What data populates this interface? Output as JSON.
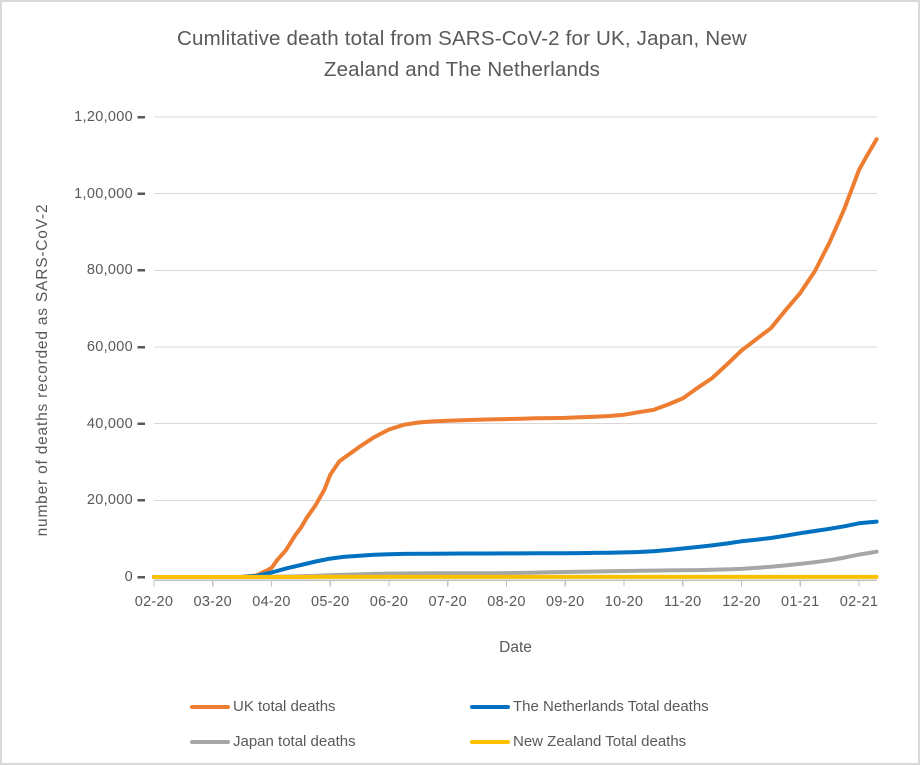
{
  "window": {
    "background": "#ffffff",
    "border_color": "#D9D9D9"
  },
  "colors": {
    "title_text": "#595959",
    "axis_text": "#595959",
    "gridline": "#D9D9D9",
    "axis_line": "#C0C0C0",
    "y_tick_mark": "#595959"
  },
  "chart_data": {
    "type": "line",
    "title": "Cumlitative death total from SARS-CoV-2 for UK, Japan, New Zealand and The Netherlands",
    "title_lines": [
      "Cumlitative death total from SARS-CoV-2 for UK, Japan, New",
      "Zealand and The Netherlands"
    ],
    "xlabel": "Date",
    "ylabel": "number of deaths recorded as SARS-CoV-2",
    "x_tick_labels": [
      "02-20",
      "03-20",
      "04-20",
      "05-20",
      "06-20",
      "07-20",
      "08-20",
      "09-20",
      "10-20",
      "11-20",
      "12-20",
      "01-21",
      "02-21"
    ],
    "x_unit": "months after 02-20 (fractional = within month)",
    "y_ticks": [
      {
        "label": "0",
        "value": 0
      },
      {
        "label": "20,000",
        "value": 20000
      },
      {
        "label": "40,000",
        "value": 40000
      },
      {
        "label": "60,000",
        "value": 60000
      },
      {
        "label": "80,000",
        "value": 80000
      },
      {
        "label": "1,00,000",
        "value": 100000
      },
      {
        "label": "1,20,000",
        "value": 120000
      }
    ],
    "ylim": [
      0,
      120000
    ],
    "grid": "horizontal",
    "legend_position": "bottom two-column",
    "series": [
      {
        "name": "UK total deaths",
        "color": "#ED7D31",
        "points": [
          [
            0,
            0
          ],
          [
            0.5,
            0
          ],
          [
            1,
            0
          ],
          [
            1.25,
            5
          ],
          [
            1.5,
            35
          ],
          [
            1.75,
            422
          ],
          [
            2,
            2352
          ],
          [
            2.1,
            4500
          ],
          [
            2.25,
            7097
          ],
          [
            2.4,
            10800
          ],
          [
            2.5,
            12868
          ],
          [
            2.6,
            15464
          ],
          [
            2.75,
            18738
          ],
          [
            2.9,
            22800
          ],
          [
            3,
            26711
          ],
          [
            3.15,
            30100
          ],
          [
            3.25,
            31241
          ],
          [
            3.5,
            33998
          ],
          [
            3.75,
            36500
          ],
          [
            4,
            38489
          ],
          [
            4.25,
            39700
          ],
          [
            4.5,
            40300
          ],
          [
            4.75,
            40600
          ],
          [
            5,
            40750
          ],
          [
            5.25,
            40900
          ],
          [
            5.5,
            41000
          ],
          [
            5.75,
            41100
          ],
          [
            6,
            41200
          ],
          [
            6.25,
            41300
          ],
          [
            6.5,
            41400
          ],
          [
            6.75,
            41450
          ],
          [
            7,
            41500
          ],
          [
            7.25,
            41650
          ],
          [
            7.5,
            41800
          ],
          [
            7.75,
            42000
          ],
          [
            8,
            42350
          ],
          [
            8.25,
            43000
          ],
          [
            8.5,
            43600
          ],
          [
            8.75,
            45000
          ],
          [
            9,
            46600
          ],
          [
            9.25,
            49300
          ],
          [
            9.5,
            51900
          ],
          [
            9.75,
            55400
          ],
          [
            10,
            59100
          ],
          [
            10.25,
            62000
          ],
          [
            10.5,
            64900
          ],
          [
            10.75,
            69600
          ],
          [
            11,
            74100
          ],
          [
            11.25,
            79800
          ],
          [
            11.5,
            87300
          ],
          [
            11.75,
            96000
          ],
          [
            12,
            106200
          ],
          [
            12.15,
            110300
          ],
          [
            12.3,
            114200
          ]
        ]
      },
      {
        "name": "The Netherlands Total deaths",
        "color": "#0070C0",
        "points": [
          [
            0,
            0
          ],
          [
            1,
            0
          ],
          [
            1.25,
            1
          ],
          [
            1.5,
            20
          ],
          [
            1.75,
            277
          ],
          [
            2,
            1173
          ],
          [
            2.25,
            2255
          ],
          [
            2.5,
            3134
          ],
          [
            2.75,
            4054
          ],
          [
            3,
            4795
          ],
          [
            3.25,
            5288
          ],
          [
            3.5,
            5562
          ],
          [
            3.75,
            5788
          ],
          [
            4,
            5956
          ],
          [
            4.25,
            6031
          ],
          [
            4.5,
            6059
          ],
          [
            4.75,
            6090
          ],
          [
            5,
            6113
          ],
          [
            5.25,
            6127
          ],
          [
            5.5,
            6136
          ],
          [
            5.75,
            6141
          ],
          [
            6,
            6147
          ],
          [
            6.25,
            6159
          ],
          [
            6.5,
            6178
          ],
          [
            6.75,
            6195
          ],
          [
            7,
            6215
          ],
          [
            7.25,
            6245
          ],
          [
            7.5,
            6296
          ],
          [
            7.75,
            6340
          ],
          [
            8,
            6406
          ],
          [
            8.25,
            6531
          ],
          [
            8.5,
            6692
          ],
          [
            8.75,
            7046
          ],
          [
            9,
            7434
          ],
          [
            9.25,
            7833
          ],
          [
            9.5,
            8236
          ],
          [
            9.75,
            8749
          ],
          [
            10,
            9326
          ],
          [
            10.25,
            9743
          ],
          [
            10.5,
            10168
          ],
          [
            10.75,
            10785
          ],
          [
            11,
            11432
          ],
          [
            11.25,
            11999
          ],
          [
            11.5,
            12563
          ],
          [
            11.75,
            13231
          ],
          [
            12,
            13998
          ],
          [
            12.3,
            14450
          ]
        ]
      },
      {
        "name": "Japan total deaths",
        "color": "#A6A6A6",
        "points": [
          [
            0,
            1
          ],
          [
            1,
            5
          ],
          [
            1.5,
            22
          ],
          [
            2,
            57
          ],
          [
            2.25,
            109
          ],
          [
            2.5,
            178
          ],
          [
            2.75,
            299
          ],
          [
            3,
            432
          ],
          [
            3.25,
            567
          ],
          [
            3.5,
            687
          ],
          [
            3.75,
            796
          ],
          [
            4,
            887
          ],
          [
            4.25,
            916
          ],
          [
            4.5,
            935
          ],
          [
            4.75,
            955
          ],
          [
            5,
            976
          ],
          [
            5.25,
            985
          ],
          [
            5.5,
            996
          ],
          [
            5.75,
            1003
          ],
          [
            6,
            1011
          ],
          [
            6.25,
            1062
          ],
          [
            6.5,
            1138
          ],
          [
            6.75,
            1214
          ],
          [
            7,
            1296
          ],
          [
            7.25,
            1368
          ],
          [
            7.5,
            1439
          ],
          [
            7.75,
            1505
          ],
          [
            8,
            1571
          ],
          [
            8.25,
            1620
          ],
          [
            8.5,
            1666
          ],
          [
            8.75,
            1711
          ],
          [
            9,
            1755
          ],
          [
            9.25,
            1813
          ],
          [
            9.5,
            1876
          ],
          [
            9.75,
            1983
          ],
          [
            10,
            2109
          ],
          [
            10.25,
            2385
          ],
          [
            10.5,
            2697
          ],
          [
            10.75,
            3037
          ],
          [
            11,
            3414
          ],
          [
            11.25,
            3863
          ],
          [
            11.5,
            4380
          ],
          [
            11.75,
            5063
          ],
          [
            12,
            5833
          ],
          [
            12.3,
            6600
          ]
        ]
      },
      {
        "name": "New Zealand Total deaths",
        "color": "#FFC000",
        "points": [
          [
            0,
            0
          ],
          [
            1,
            0
          ],
          [
            2,
            1
          ],
          [
            2.25,
            4
          ],
          [
            2.5,
            11
          ],
          [
            2.75,
            17
          ],
          [
            3,
            19
          ],
          [
            3.5,
            21
          ],
          [
            4,
            22
          ],
          [
            5,
            22
          ],
          [
            6,
            22
          ],
          [
            7,
            24
          ],
          [
            7.5,
            25
          ],
          [
            8,
            25
          ],
          [
            9,
            25
          ],
          [
            10,
            25
          ],
          [
            11,
            25
          ],
          [
            12,
            26
          ],
          [
            12.3,
            26
          ]
        ]
      }
    ]
  }
}
